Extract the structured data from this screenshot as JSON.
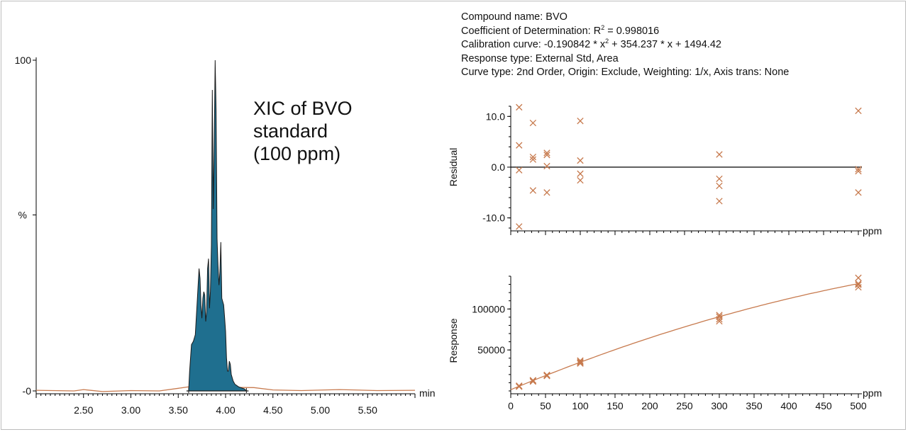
{
  "info": {
    "compound": "Compound name: BVO",
    "determination_prefix": "Coefficient of Determination: R",
    "determination_sup": "2",
    "determination_value": " = 0.998016",
    "calib_prefix": "Calibration curve: -0.190842 * x",
    "calib_sup": "2",
    "calib_rest": " + 354.237 * x + 1494.42",
    "response_type": "Response type: External Std, Area",
    "curve_type": "Curve type: 2nd Order, Origin: Exclude, Weighting: 1/x, Axis trans: None"
  },
  "annotation": {
    "line1": "XIC of BVO",
    "line2": "standard",
    "line3": "(100 ppm)"
  },
  "colors": {
    "peak_fill": "#1f6f8f",
    "peak_outline": "#1a1a1a",
    "baseline_trace": "#c77a4e",
    "marker": "#c77a4e",
    "axis": "#000000"
  },
  "chart_data": [
    {
      "type": "area",
      "xunit": "min",
      "ylabel": "%",
      "xlim": [
        2.0,
        6.0
      ],
      "ylim": [
        0,
        100
      ],
      "yticks": [
        {
          "v": 0,
          "label": "-0"
        },
        {
          "v": 100,
          "label": "100"
        }
      ],
      "xticks": [
        2.5,
        3.0,
        3.5,
        4.0,
        4.5,
        5.0,
        5.5
      ],
      "xtick_labels": [
        "2.50",
        "3.00",
        "3.50",
        "4.00",
        "4.50",
        "5.00",
        "5.50"
      ],
      "peak_range": [
        3.61,
        4.22
      ],
      "peak_points": [
        [
          3.61,
          0
        ],
        [
          3.62,
          6
        ],
        [
          3.64,
          14
        ],
        [
          3.66,
          15
        ],
        [
          3.68,
          17
        ],
        [
          3.7,
          27
        ],
        [
          3.72,
          37
        ],
        [
          3.73,
          34
        ],
        [
          3.74,
          26
        ],
        [
          3.75,
          22
        ],
        [
          3.76,
          28
        ],
        [
          3.77,
          30
        ],
        [
          3.78,
          29
        ],
        [
          3.79,
          21
        ],
        [
          3.8,
          24
        ],
        [
          3.81,
          37
        ],
        [
          3.82,
          40
        ],
        [
          3.83,
          25
        ],
        [
          3.84,
          30
        ],
        [
          3.85,
          44
        ],
        [
          3.86,
          91
        ],
        [
          3.87,
          55
        ],
        [
          3.88,
          75
        ],
        [
          3.89,
          100
        ],
        [
          3.9,
          85
        ],
        [
          3.91,
          46
        ],
        [
          3.92,
          38
        ],
        [
          3.93,
          32
        ],
        [
          3.94,
          36
        ],
        [
          3.95,
          45
        ],
        [
          3.96,
          28
        ],
        [
          3.97,
          27
        ],
        [
          3.98,
          26
        ],
        [
          3.99,
          22
        ],
        [
          4.0,
          18
        ],
        [
          4.01,
          10
        ],
        [
          4.02,
          6
        ],
        [
          4.03,
          6
        ],
        [
          4.04,
          9
        ],
        [
          4.05,
          8
        ],
        [
          4.06,
          5
        ],
        [
          4.08,
          3
        ],
        [
          4.1,
          2
        ],
        [
          4.14,
          1.2
        ],
        [
          4.2,
          0.6
        ],
        [
          4.22,
          0
        ]
      ],
      "baseline_points": [
        [
          2.0,
          0.2
        ],
        [
          2.4,
          0.0
        ],
        [
          2.5,
          0.4
        ],
        [
          2.7,
          -0.2
        ],
        [
          3.0,
          0.1
        ],
        [
          3.3,
          0.0
        ],
        [
          3.5,
          0.8
        ],
        [
          3.6,
          1.2
        ],
        [
          4.3,
          1.0
        ],
        [
          4.5,
          0.3
        ],
        [
          4.8,
          0.1
        ],
        [
          5.2,
          0.4
        ],
        [
          5.6,
          0.1
        ],
        [
          6.0,
          0.2
        ]
      ]
    },
    {
      "type": "scatter",
      "xunit": "ppm",
      "ylabel": "Residual",
      "xlim": [
        0,
        500
      ],
      "ylim": [
        -12,
        12
      ],
      "yticks": [
        10,
        0,
        -10
      ],
      "ytick_labels": [
        "10.0",
        "0.0",
        "-10.0"
      ],
      "points": [
        [
          12,
          11.8
        ],
        [
          12,
          4.3
        ],
        [
          12,
          -0.6
        ],
        [
          12,
          -11.7
        ],
        [
          32,
          8.7
        ],
        [
          32,
          2.0
        ],
        [
          32,
          1.5
        ],
        [
          32,
          -4.6
        ],
        [
          52,
          2.8
        ],
        [
          52,
          2.4
        ],
        [
          52,
          0.2
        ],
        [
          52,
          -5.0
        ],
        [
          100,
          9.1
        ],
        [
          100,
          1.3
        ],
        [
          100,
          -1.3
        ],
        [
          100,
          -2.6
        ],
        [
          300,
          2.5
        ],
        [
          300,
          -2.3
        ],
        [
          300,
          -3.7
        ],
        [
          300,
          -6.7
        ],
        [
          500,
          11.1
        ],
        [
          500,
          -0.4
        ],
        [
          500,
          -0.8
        ],
        [
          500,
          -5.0
        ]
      ]
    },
    {
      "type": "scatter",
      "xunit": "ppm",
      "ylabel": "Response",
      "xlim": [
        0,
        500
      ],
      "ylim": [
        0,
        140000
      ],
      "yticks": [
        100000,
        50000
      ],
      "ytick_labels": [
        "100000",
        "50000"
      ],
      "xticks": [
        0,
        50,
        100,
        150,
        200,
        250,
        300,
        350,
        400,
        450,
        500
      ],
      "xtick_labels": [
        "0",
        "50",
        "100",
        "150",
        "200",
        "250",
        "300",
        "350",
        "400",
        "450",
        "500"
      ],
      "fit": {
        "a": -0.190842,
        "b": 354.237,
        "c": 1494.42
      },
      "points": [
        [
          12,
          5200
        ],
        [
          12,
          6300
        ],
        [
          12,
          5700
        ],
        [
          32,
          11500
        ],
        [
          32,
          12500
        ],
        [
          32,
          13000
        ],
        [
          52,
          18800
        ],
        [
          52,
          19500
        ],
        [
          52,
          18300
        ],
        [
          100,
          33500
        ],
        [
          100,
          35500
        ],
        [
          100,
          37000
        ],
        [
          100,
          34300
        ],
        [
          300,
          85000
        ],
        [
          300,
          87500
        ],
        [
          300,
          90500
        ],
        [
          300,
          92500
        ],
        [
          500,
          126500
        ],
        [
          500,
          129500
        ],
        [
          500,
          131000
        ],
        [
          500,
          138000
        ]
      ]
    }
  ]
}
